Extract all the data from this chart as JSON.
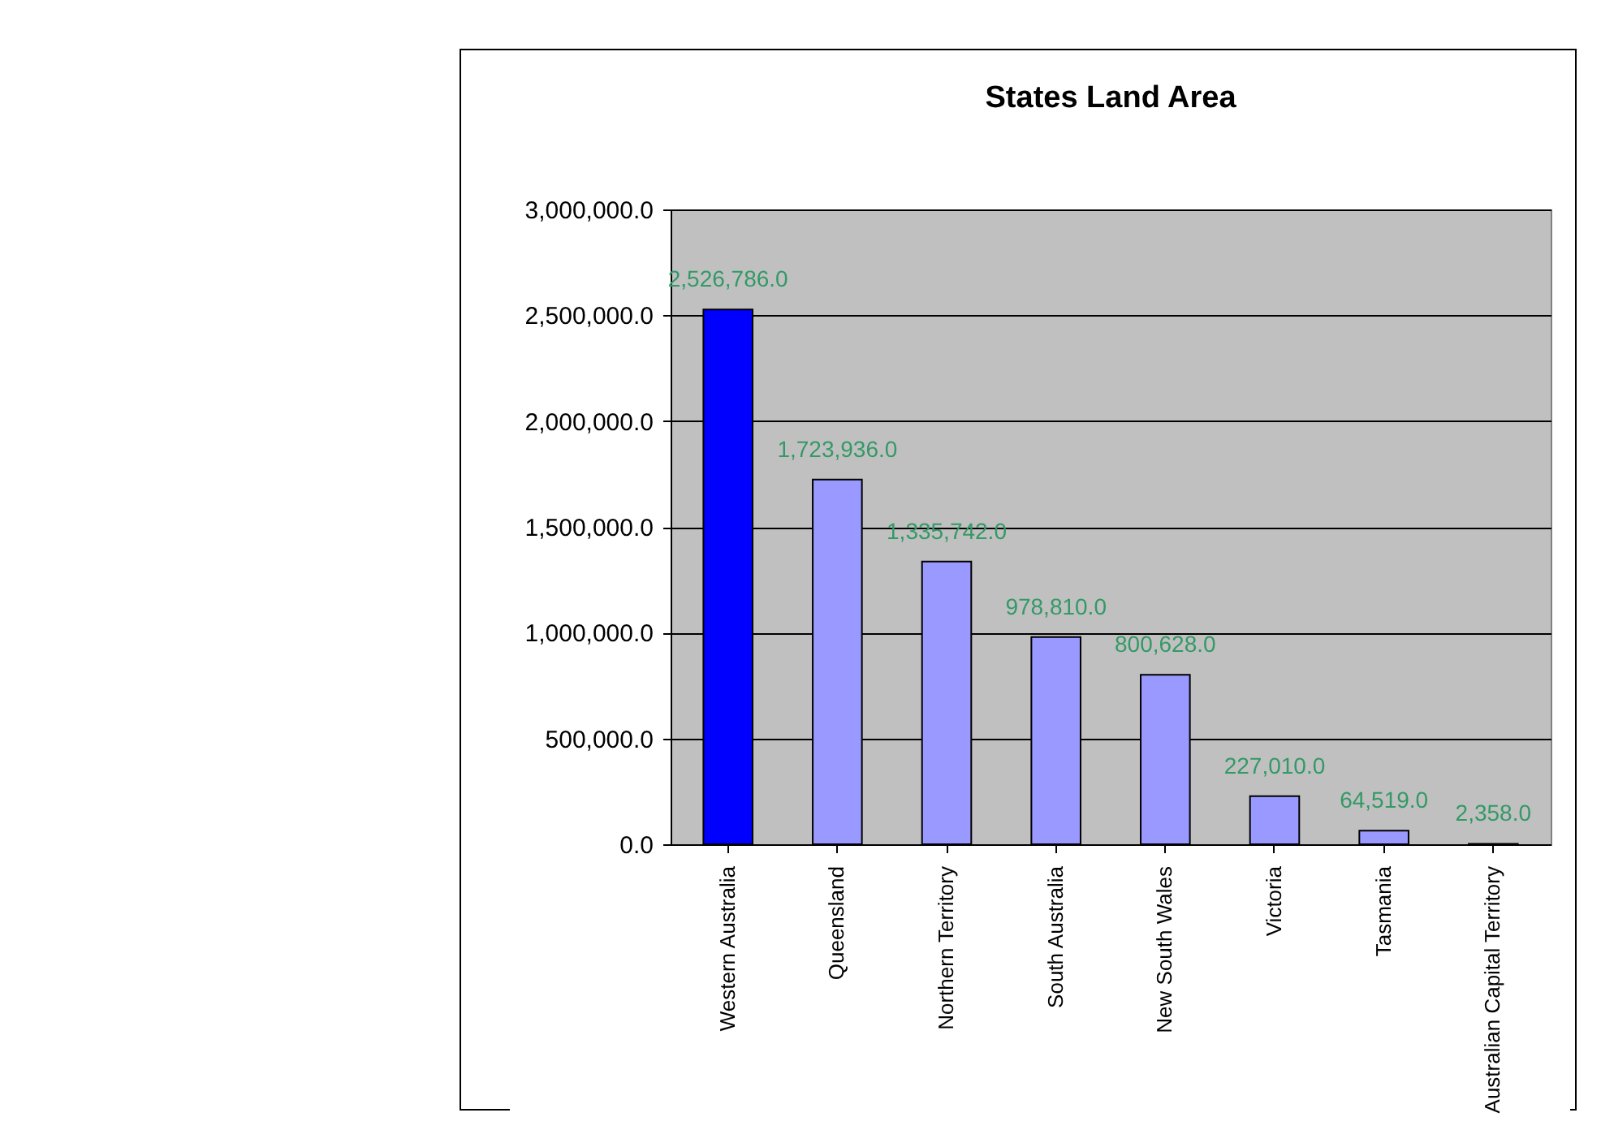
{
  "chart_data": {
    "type": "bar",
    "title": "States Land Area",
    "categories": [
      "Western Australia",
      "Queensland",
      "Northern Territory",
      "South Australia",
      "New South Wales",
      "Victoria",
      "Tasmania",
      "Australian Capital Territory"
    ],
    "values": [
      2526786.0,
      1723936.0,
      1335742.0,
      978810.0,
      800628.0,
      227010.0,
      64519.0,
      2358.0
    ],
    "colors": [
      "#0000ff",
      "#9999ff",
      "#9999ff",
      "#9999ff",
      "#9999ff",
      "#9999ff",
      "#9999ff",
      "#9999ff"
    ],
    "value_labels": [
      "2,526,786.0",
      "1,723,936.0",
      "1,335,742.0",
      "978,810.0",
      "800,628.0",
      "227,010.0",
      "64,519.0",
      "2,358.0"
    ],
    "ylim": [
      0,
      3000000
    ],
    "yticks": [
      {
        "value": 0,
        "label": "0.0"
      },
      {
        "value": 500000,
        "label": "500,000.0"
      },
      {
        "value": 1000000,
        "label": "1,000,000.0"
      },
      {
        "value": 1500000,
        "label": "1,500,000.0"
      },
      {
        "value": 2000000,
        "label": "2,000,000.0"
      },
      {
        "value": 2500000,
        "label": "2,500,000.0"
      },
      {
        "value": 3000000,
        "label": "3,000,000.0"
      }
    ],
    "grid": "y"
  }
}
